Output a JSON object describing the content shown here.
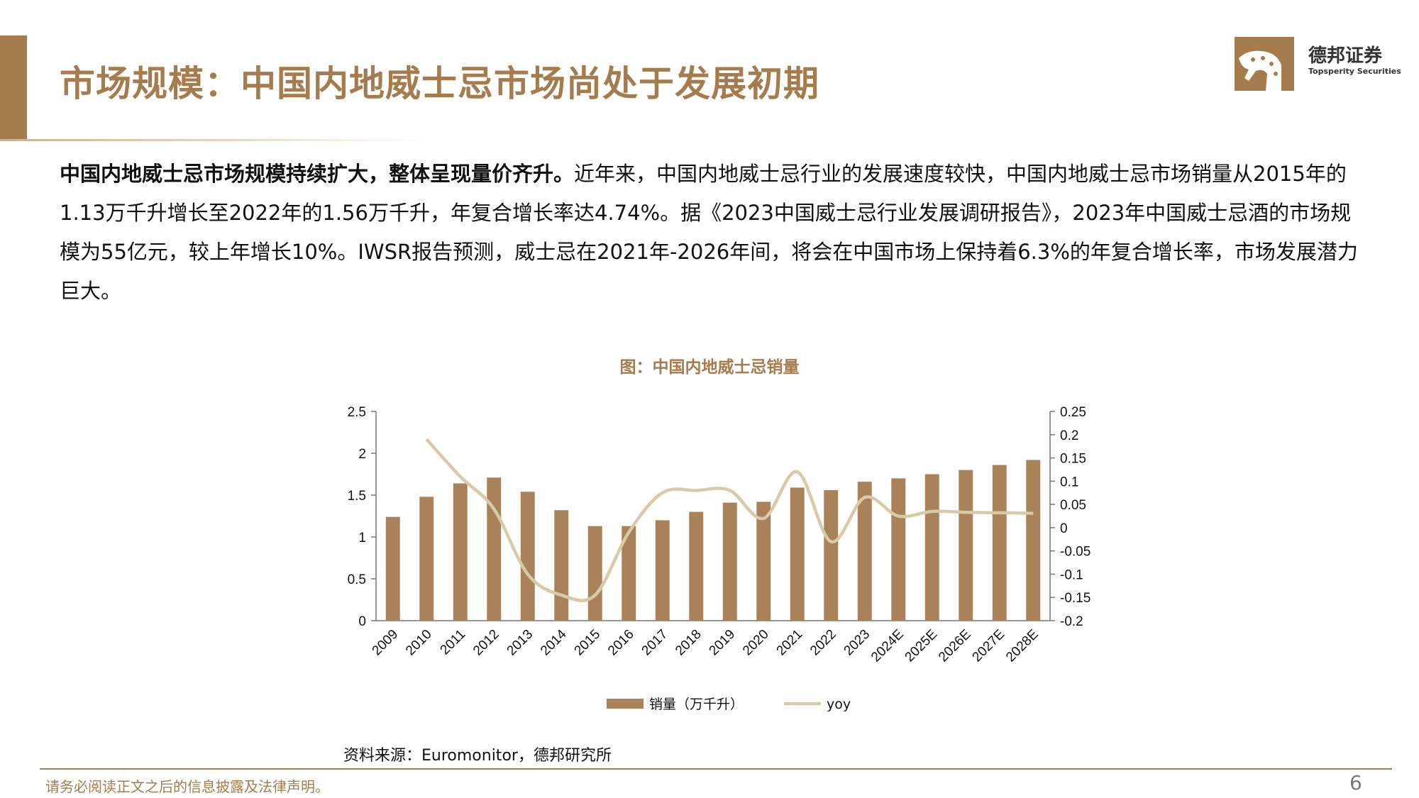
{
  "header": {
    "title": "市场规模：中国内地威士忌市场尚处于发展初期",
    "logo_cn": "德邦证券",
    "logo_en": "Topsperity Securities"
  },
  "body": {
    "bold_lead": "中国内地威士忌市场规模持续扩大，整体呈现量价齐升。",
    "text": "近年来，中国内地威士忌行业的发展速度较快，中国内地威士忌市场销量从2015年的1.13万千升增长至2022年的1.56万千升，年复合增长率达4.74%。据《2023中国威士忌行业发展调研报告》，2023年中国威士忌酒的市场规模为55亿元，较上年增长10%。IWSR报告预测，威士忌在2021年-2026年间，将会在中国市场上保持着6.3%的年复合增长率，市场发展潜力巨大。"
  },
  "chart_data": {
    "type": "bar",
    "title": "图：中国内地威士忌销量",
    "categories": [
      "2009",
      "2010",
      "2011",
      "2012",
      "2013",
      "2014",
      "2015",
      "2016",
      "2017",
      "2018",
      "2019",
      "2020",
      "2021",
      "2022",
      "2023",
      "2024E",
      "2025E",
      "2026E",
      "2027E",
      "2028E"
    ],
    "series": [
      {
        "name": "销量（万千升）",
        "type": "bar",
        "axis": "left",
        "color": "#a98259",
        "values": [
          1.24,
          1.48,
          1.64,
          1.71,
          1.54,
          1.32,
          1.13,
          1.13,
          1.2,
          1.3,
          1.41,
          1.42,
          1.59,
          1.56,
          1.66,
          1.7,
          1.75,
          1.8,
          1.86,
          1.92
        ]
      },
      {
        "name": "yoy",
        "type": "line",
        "axis": "right",
        "color": "#d8c9a8",
        "values": [
          null,
          0.19,
          0.11,
          0.04,
          -0.1,
          -0.145,
          -0.145,
          -0.01,
          0.075,
          0.08,
          0.08,
          0.02,
          0.12,
          -0.03,
          0.065,
          0.025,
          0.035,
          0.033,
          0.032,
          0.031
        ]
      }
    ],
    "ylim_left": [
      0,
      2.5
    ],
    "yticks_left": [
      0,
      0.5,
      1,
      1.5,
      2,
      2.5
    ],
    "ylim_right": [
      -0.2,
      0.25
    ],
    "yticks_right": [
      -0.2,
      -0.15,
      -0.1,
      -0.05,
      0,
      0.05,
      0.1,
      0.15,
      0.2,
      0.25
    ],
    "legend_position": "bottom",
    "grid": false
  },
  "source": "资料来源：Euromonitor，德邦研究所",
  "footer": {
    "disclaimer": "请务必阅读正文之后的信息披露及法律声明。",
    "page": "6"
  },
  "colors": {
    "accent": "#a57c4d",
    "bar": "#a98259",
    "line": "#d8c9a8"
  }
}
